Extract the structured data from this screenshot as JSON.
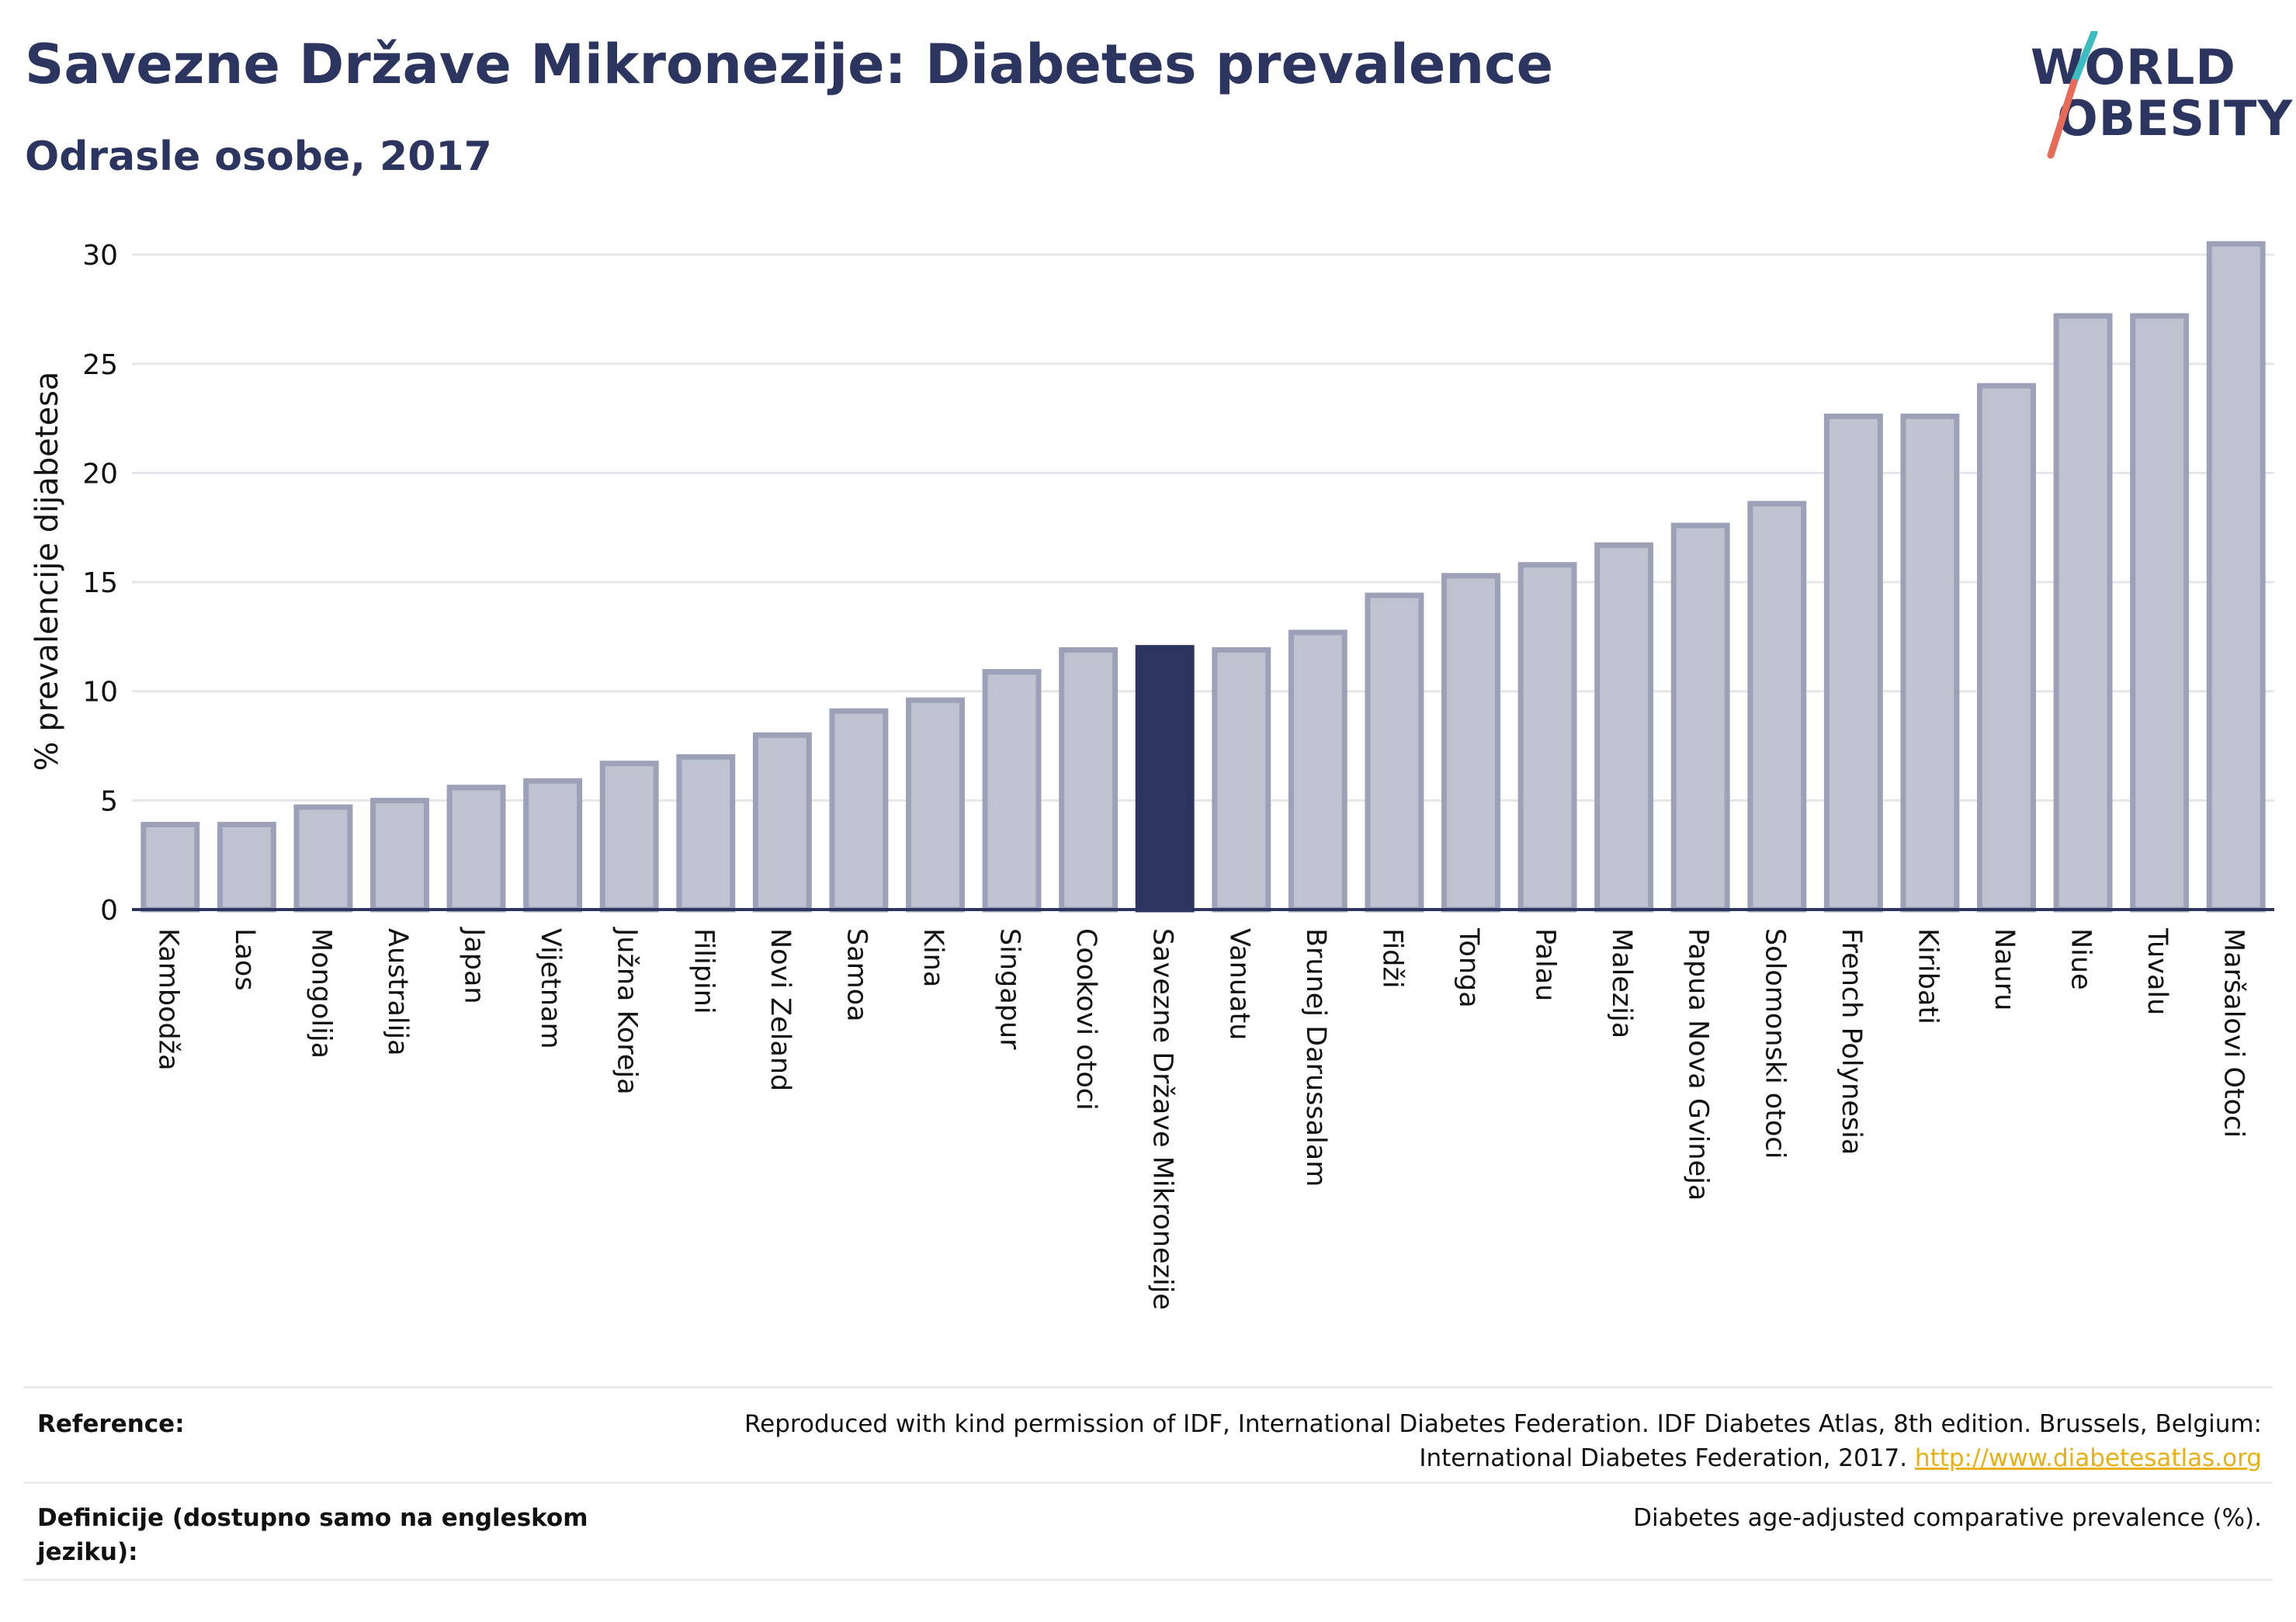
{
  "header": {
    "title": "Savezne Države Mikronezije: Diabetes prevalence",
    "subtitle": "Odrasle osobe, 2017"
  },
  "logo": {
    "line1": "WORLD",
    "line2": "OBESITY",
    "colors": {
      "text": "#2b3560",
      "slash_top": "#3cbcc0",
      "slash_bottom": "#e86b5a"
    }
  },
  "chart_data": {
    "type": "bar",
    "ylabel": "% prevalencije dijabetesa",
    "xlabel": "",
    "ylim": [
      0,
      31
    ],
    "yticks": [
      0,
      5,
      10,
      15,
      20,
      25,
      30
    ],
    "grid": true,
    "highlight_category": "Savezne Države Mikronezije",
    "colors": {
      "bar": "#bfc2cf",
      "bar_border": "#9ca1b8",
      "highlight": "#2b3560",
      "grid": "#e6e6ea",
      "axis": "#2b3560"
    },
    "categories": [
      "Kambodža",
      "Laos",
      "Mongolija",
      "Australija",
      "Japan",
      "Vijetnam",
      "Južna Koreja",
      "Filipini",
      "Novi Zeland",
      "Samoa",
      "Kina",
      "Singapur",
      "Cookovi otoci",
      "Savezne Države Mikronezije",
      "Vanuatu",
      "Brunej Darussalam",
      "Fidži",
      "Tonga",
      "Palau",
      "Malezija",
      "Papua Nova Gvineja",
      "Solomonski otoci",
      "French Polynesia",
      "Kiribati",
      "Nauru",
      "Niue",
      "Tuvalu",
      "Maršalovi Otoci"
    ],
    "values": [
      4.0,
      4.0,
      4.8,
      5.1,
      5.7,
      6.0,
      6.8,
      7.1,
      8.1,
      9.2,
      9.7,
      11.0,
      12.0,
      12.1,
      12.0,
      12.8,
      14.5,
      15.4,
      15.9,
      16.8,
      17.7,
      18.7,
      22.7,
      22.7,
      24.1,
      27.3,
      27.3,
      30.6
    ]
  },
  "footer": {
    "reference_label": "Reference:",
    "reference_line1": "Reproduced with kind permission of IDF, International Diabetes Federation. IDF Diabetes Atlas, 8th edition. Brussels, Belgium:",
    "reference_line2": "International Diabetes Federation, 2017.",
    "reference_link": "http://www.diabetesatlas.org",
    "definition_label": "Definicije (dostupno samo na engleskom jeziku):",
    "definition_value": "Diabetes age-adjusted comparative prevalence (%)."
  }
}
